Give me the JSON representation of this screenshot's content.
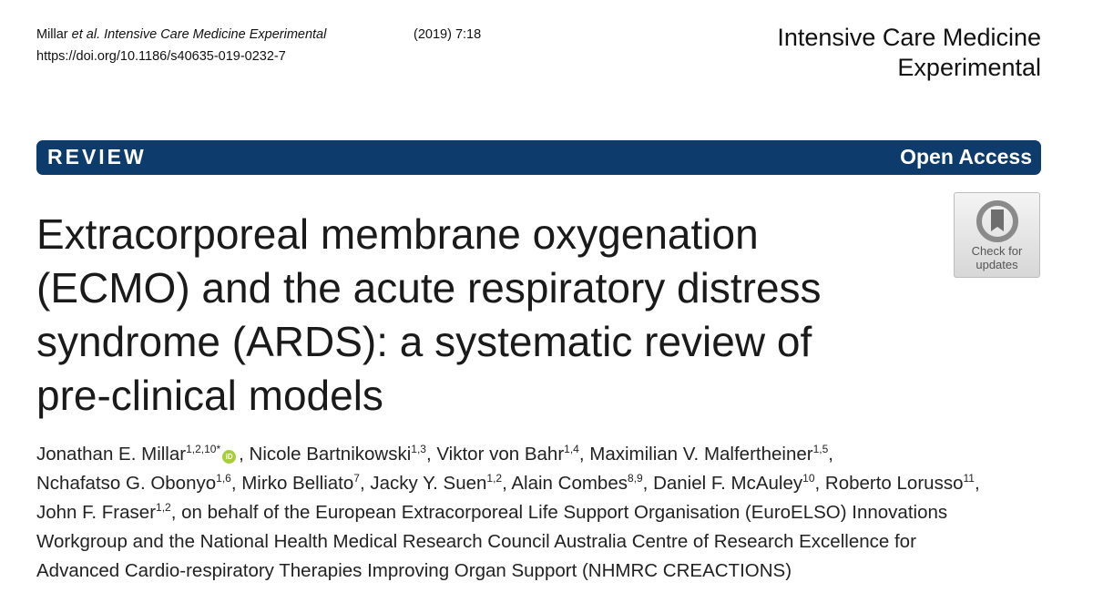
{
  "header": {
    "citation_authors": "Millar ",
    "citation_etal": "et al. Intensive Care Medicine Experimental",
    "citation_year": "(2019) 7:18",
    "doi": "https://doi.org/10.1186/s40635-019-0232-7",
    "journal_name_line1": "Intensive Care Medicine",
    "journal_name_line2": "Experimental"
  },
  "banner": {
    "article_type": "REVIEW",
    "access": "Open Access"
  },
  "title": {
    "line1": "Extracorporeal membrane oxygenation",
    "line2": "(ECMO) and the acute respiratory distress",
    "line3": "syndrome (ARDS): a systematic review of",
    "line4": "pre-clinical models"
  },
  "check_updates": {
    "line1": "Check for",
    "line2": "updates"
  },
  "orcid_badge": "iD",
  "authors": [
    {
      "name": "Jonathan E. Millar",
      "aff": "1,2,10*"
    },
    {
      "name": "Nicole Bartnikowski",
      "aff": "1,3"
    },
    {
      "name": "Viktor von Bahr",
      "aff": "1,4"
    },
    {
      "name": "Maximilian V. Malfertheiner",
      "aff": "1,5"
    },
    {
      "name": "Nchafatso G. Obonyo",
      "aff": "1,6"
    },
    {
      "name": "Mirko Belliato",
      "aff": "7"
    },
    {
      "name": "Jacky Y. Suen",
      "aff": "1,2"
    },
    {
      "name": "Alain Combes",
      "aff": "8,9"
    },
    {
      "name": "Daniel F. McAuley",
      "aff": "10"
    },
    {
      "name": "Roberto Lorusso",
      "aff": "11"
    },
    {
      "name": "John F. Fraser",
      "aff": "1,2"
    }
  ],
  "authors_behalf_line3": ", on behalf of the European Extracorporeal Life Support Organisation (EuroELSO) Innovations",
  "authors_behalf_line4": "Workgroup and the National Health Medical Research Council Australia Centre of Research Excellence for",
  "authors_behalf_line5": "Advanced Cardio-respiratory Therapies Improving Organ Support (NHMRC CREACTIONS)"
}
